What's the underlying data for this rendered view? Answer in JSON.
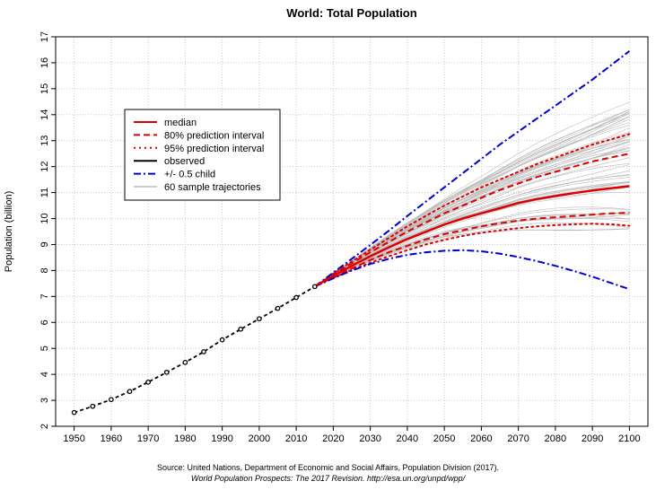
{
  "chart_data": {
    "type": "line",
    "title": "World: Total Population",
    "ylabel": "Population (billion)",
    "xlabel": "",
    "xlim": [
      1945,
      2105
    ],
    "ylim": [
      2,
      17
    ],
    "x_ticks": [
      1950,
      1960,
      1970,
      1980,
      1990,
      2000,
      2010,
      2020,
      2030,
      2040,
      2050,
      2060,
      2070,
      2080,
      2090,
      2100
    ],
    "y_ticks": [
      2,
      3,
      4,
      5,
      6,
      7,
      8,
      9,
      10,
      11,
      12,
      13,
      14,
      15,
      16,
      17
    ],
    "grid": true,
    "legend_position": "top-left",
    "colors": {
      "median": "#dd0000",
      "observed": "#000000",
      "half_child": "#0000cc",
      "trajectories": "#bbbbbb"
    },
    "series": [
      {
        "name": "observed",
        "style": "dashed-points",
        "x": [
          1950,
          1955,
          1960,
          1965,
          1970,
          1975,
          1980,
          1985,
          1990,
          1995,
          2000,
          2005,
          2010,
          2015
        ],
        "values": [
          2.53,
          2.77,
          3.03,
          3.34,
          3.7,
          4.08,
          4.46,
          4.87,
          5.33,
          5.74,
          6.14,
          6.54,
          6.96,
          7.38
        ]
      },
      {
        "name": "median",
        "style": "solid",
        "x": [
          2015,
          2020,
          2025,
          2030,
          2035,
          2040,
          2045,
          2050,
          2055,
          2060,
          2065,
          2070,
          2075,
          2080,
          2085,
          2090,
          2095,
          2100
        ],
        "values": [
          7.38,
          7.8,
          8.18,
          8.55,
          8.89,
          9.21,
          9.49,
          9.77,
          10.0,
          10.2,
          10.4,
          10.6,
          10.75,
          10.87,
          10.98,
          11.08,
          11.17,
          11.25
        ]
      },
      {
        "name": "80% prediction interval",
        "style": "dashed",
        "x": [
          2015,
          2020,
          2025,
          2030,
          2035,
          2040,
          2045,
          2050,
          2055,
          2060,
          2065,
          2070,
          2075,
          2080,
          2085,
          2090,
          2095,
          2100
        ],
        "upper": [
          7.38,
          7.85,
          8.28,
          8.7,
          9.1,
          9.5,
          9.85,
          10.2,
          10.5,
          10.8,
          11.1,
          11.35,
          11.6,
          11.8,
          12.0,
          12.2,
          12.35,
          12.5
        ],
        "lower": [
          7.38,
          7.75,
          8.08,
          8.4,
          8.7,
          8.95,
          9.2,
          9.4,
          9.55,
          9.7,
          9.82,
          9.92,
          10.0,
          10.05,
          10.1,
          10.15,
          10.2,
          10.22
        ]
      },
      {
        "name": "95% prediction interval",
        "style": "dotted",
        "x": [
          2015,
          2020,
          2025,
          2030,
          2035,
          2040,
          2045,
          2050,
          2055,
          2060,
          2065,
          2070,
          2075,
          2080,
          2085,
          2090,
          2095,
          2100
        ],
        "upper": [
          7.38,
          7.88,
          8.35,
          8.8,
          9.25,
          9.7,
          10.1,
          10.5,
          10.85,
          11.2,
          11.5,
          11.8,
          12.1,
          12.35,
          12.6,
          12.85,
          13.05,
          13.25
        ],
        "lower": [
          7.38,
          7.72,
          8.02,
          8.3,
          8.55,
          8.78,
          9.0,
          9.18,
          9.33,
          9.45,
          9.55,
          9.63,
          9.7,
          9.75,
          9.78,
          9.8,
          9.78,
          9.72
        ]
      },
      {
        "name": "+/- 0.5 child",
        "style": "dashdot",
        "x": [
          2015,
          2020,
          2025,
          2030,
          2035,
          2040,
          2045,
          2050,
          2055,
          2060,
          2065,
          2070,
          2075,
          2080,
          2085,
          2090,
          2095,
          2100
        ],
        "upper": [
          7.38,
          7.92,
          8.45,
          8.98,
          9.53,
          10.1,
          10.65,
          11.2,
          11.75,
          12.3,
          12.85,
          13.35,
          13.85,
          14.35,
          14.85,
          15.35,
          15.9,
          16.45
        ],
        "lower": [
          7.38,
          7.7,
          8.0,
          8.25,
          8.45,
          8.6,
          8.7,
          8.76,
          8.78,
          8.74,
          8.65,
          8.52,
          8.36,
          8.18,
          7.98,
          7.76,
          7.52,
          7.28
        ]
      },
      {
        "name": "60 sample trajectories",
        "style": "thin-gray",
        "count": 60,
        "x_range": [
          2015,
          2100
        ],
        "end_range": [
          9.6,
          14.5
        ]
      }
    ],
    "legend": [
      {
        "label": "median",
        "style": "solid",
        "color": "#dd0000"
      },
      {
        "label": "80% prediction interval",
        "style": "dashed",
        "color": "#dd0000"
      },
      {
        "label": "95% prediction interval",
        "style": "dotted",
        "color": "#dd0000"
      },
      {
        "label": "observed",
        "style": "solid",
        "color": "#000000"
      },
      {
        "label": "+/- 0.5 child",
        "style": "dashdot",
        "color": "#0000cc"
      },
      {
        "label": "60 sample trajectories",
        "style": "solid",
        "color": "#bbbbbb"
      }
    ]
  },
  "caption": {
    "line1": "Source: United Nations, Department of Economic and Social Affairs, Population Division (2017).",
    "line2": "World Population Prospects: The 2017 Revision. http://esa.un.org/unpd/wpp/"
  }
}
